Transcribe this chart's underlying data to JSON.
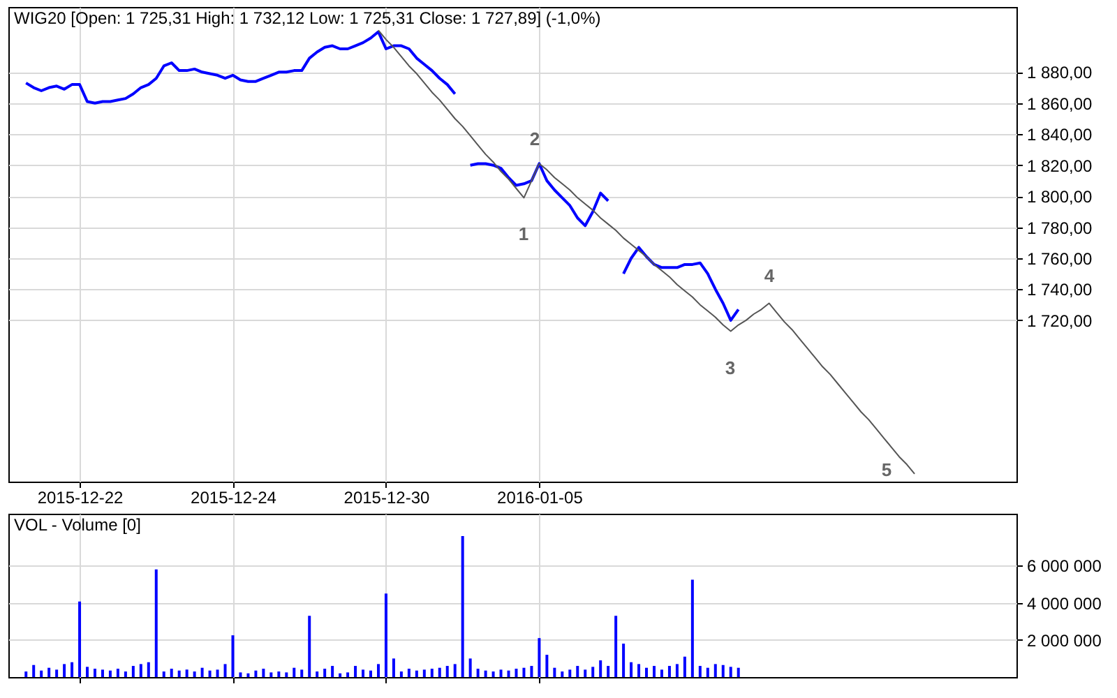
{
  "chart_data": [
    {
      "type": "line",
      "title": "WIG20 [Open: 1 725,31  High: 1 732,12  Low: 1 725,31  Close: 1 727,89] (-1,0%)",
      "categories": [
        null,
        null,
        null,
        null,
        null,
        null,
        null,
        null,
        null,
        "2015-12-22",
        null,
        null,
        null,
        null,
        null,
        null,
        null,
        null,
        null,
        null,
        null,
        null,
        null,
        null,
        null,
        null,
        null,
        null,
        null,
        "2015-12-24",
        null,
        null,
        null,
        null,
        null,
        null,
        null,
        null,
        null,
        null,
        null,
        null,
        null,
        null,
        null,
        null,
        null,
        null,
        null,
        "2015-12-30",
        null,
        null,
        null,
        null,
        null,
        null,
        null,
        null,
        null,
        null,
        null,
        null,
        null,
        null,
        null,
        null,
        null,
        null,
        null,
        "2016-01-05",
        null,
        null,
        null,
        null,
        null,
        null,
        null,
        null,
        null,
        null,
        null,
        null,
        null,
        null,
        null,
        null,
        null,
        null,
        null,
        null,
        null,
        null,
        null,
        null,
        null,
        null,
        null,
        null,
        null,
        null,
        null,
        null,
        null,
        null,
        null,
        null,
        null,
        null,
        null,
        null,
        null,
        null,
        null,
        null,
        null,
        null,
        null,
        null,
        null,
        null,
        null,
        null,
        null,
        null,
        null,
        null,
        null,
        null,
        null,
        null,
        null,
        null
      ],
      "ylim": [
        1616,
        1922
      ],
      "yticks": [
        {
          "value": 1720,
          "label": "1 720,00"
        },
        {
          "value": 1740,
          "label": "1 740,00"
        },
        {
          "value": 1760,
          "label": "1 760,00"
        },
        {
          "value": 1780,
          "label": "1 780,00"
        },
        {
          "value": 1800,
          "label": "1 800,00"
        },
        {
          "value": 1820,
          "label": "1 820,00"
        },
        {
          "value": 1840,
          "label": "1 840,00"
        },
        {
          "value": 1860,
          "label": "1 860,00"
        },
        {
          "value": 1880,
          "label": "1 880,00"
        }
      ],
      "grid": true,
      "series": [
        {
          "color": "#0000ff",
          "values": [
            null,
            null,
            1873,
            1870,
            1868,
            1870,
            1871,
            1869,
            1872,
            1872,
            1861,
            1860,
            1861,
            1861,
            1862,
            1863,
            1866,
            1870,
            1872,
            1876,
            1884,
            1886,
            1881,
            1881,
            1882,
            1880,
            1879,
            1878,
            1876,
            1878,
            1875,
            1874,
            1874,
            1876,
            1878,
            1880,
            1880,
            1881,
            1881,
            1889,
            1893,
            1896,
            1897,
            1895,
            1895,
            1897,
            1899,
            1902,
            1906,
            1895,
            1897,
            1897,
            1895,
            1889,
            1885,
            1881,
            1876,
            1872,
            1866,
            null,
            1820,
            1821,
            1821,
            1820,
            1818,
            1812,
            1807,
            1808,
            1810,
            1821,
            1810,
            1804,
            1799,
            1794,
            1786,
            1781,
            1790,
            1802,
            1797,
            null,
            1750,
            1760,
            1767,
            1761,
            1756,
            1754,
            1754,
            1754,
            1756,
            1756,
            1757,
            1750,
            1740,
            1731,
            1720,
            1727,
            null,
            null,
            null,
            null,
            null,
            null,
            null,
            null,
            null,
            null,
            null,
            null,
            null,
            null,
            null,
            null,
            null,
            null,
            null,
            null,
            null,
            null,
            null,
            null,
            null,
            null,
            null,
            null,
            null,
            null,
            null,
            null,
            null,
            null,
            null,
            null
          ]
        },
        {
          "color": "#555555",
          "values": [
            null,
            null,
            null,
            null,
            null,
            null,
            null,
            null,
            null,
            null,
            null,
            null,
            null,
            null,
            null,
            null,
            null,
            null,
            null,
            null,
            null,
            null,
            null,
            null,
            null,
            null,
            null,
            null,
            null,
            null,
            null,
            null,
            null,
            null,
            null,
            null,
            null,
            null,
            null,
            null,
            null,
            null,
            null,
            null,
            null,
            null,
            null,
            null,
            1907,
            1901,
            1896,
            1890,
            1884,
            1879,
            1873,
            1867,
            1862,
            1856,
            1850,
            1845,
            1839,
            1833,
            1827,
            1822,
            1816,
            1811,
            1805,
            1799,
            1810,
            1821,
            1817,
            1812,
            1808,
            1804,
            1799,
            1795,
            1791,
            1786,
            1782,
            1778,
            1773,
            1769,
            1765,
            1761,
            1756,
            1752,
            1748,
            1743,
            1739,
            1735,
            1730,
            1726,
            1722,
            1717,
            1713,
            1717,
            1720,
            1724,
            1727,
            1731,
            1725,
            1719,
            1714,
            1708,
            1702,
            1696,
            1690,
            1685,
            1679,
            1673,
            1667,
            1661,
            1656,
            1650,
            1644,
            1638,
            1632,
            1627,
            1621,
            null,
            null,
            null,
            null,
            null,
            null,
            null,
            null,
            null,
            null,
            null,
            null,
            null
          ]
        }
      ],
      "annotations": [
        "1",
        "2",
        "3",
        "4",
        "5"
      ]
    },
    {
      "type": "bar",
      "title": "VOL - Volume [0]",
      "categories": [
        null,
        null,
        null,
        null,
        null,
        null,
        null,
        null,
        null,
        "2015-12-22",
        null,
        null,
        null,
        null,
        null,
        null,
        null,
        null,
        null,
        null,
        null,
        null,
        null,
        null,
        null,
        null,
        null,
        null,
        null,
        "2015-12-24",
        null,
        null,
        null,
        null,
        null,
        null,
        null,
        null,
        null,
        null,
        null,
        null,
        null,
        null,
        null,
        null,
        null,
        null,
        null,
        "2015-12-30",
        null,
        null,
        null,
        null,
        null,
        null,
        null,
        null,
        null,
        null,
        null,
        null,
        null,
        null,
        null,
        null,
        null,
        null,
        null,
        "2016-01-05",
        null,
        null,
        null,
        null,
        null,
        null,
        null,
        null,
        null,
        null,
        null,
        null,
        null,
        null,
        null,
        null,
        null,
        null,
        null,
        null,
        null,
        null,
        null,
        null,
        null,
        null,
        null,
        null,
        null,
        null,
        null,
        null,
        null,
        null,
        null,
        null,
        null,
        null,
        null,
        null,
        null,
        null,
        null,
        null,
        null,
        null,
        null,
        null,
        null,
        null,
        null,
        null,
        null,
        null,
        null,
        null,
        null,
        null,
        null,
        null,
        null,
        null
      ],
      "ylim": [
        0,
        8800000
      ],
      "yticks": [
        {
          "value": 2000000,
          "label": "2 000 000"
        },
        {
          "value": 4000000,
          "label": "4 000 000"
        },
        {
          "value": 6000000,
          "label": "6 000 000"
        }
      ],
      "grid": true,
      "tick_labels": "y",
      "series": [
        {
          "color": "#0000ff",
          "values": [
            null,
            null,
            300000,
            650000,
            350000,
            500000,
            400000,
            700000,
            800000,
            4070000,
            550000,
            450000,
            400000,
            350000,
            450000,
            300000,
            600000,
            700000,
            800000,
            5800000,
            300000,
            450000,
            350000,
            400000,
            300000,
            500000,
            350000,
            400000,
            700000,
            2250000,
            250000,
            200000,
            350000,
            450000,
            250000,
            300000,
            250000,
            500000,
            400000,
            3300000,
            300000,
            450000,
            600000,
            200000,
            250000,
            600000,
            400000,
            350000,
            700000,
            4500000,
            1000000,
            300000,
            450000,
            350000,
            400000,
            450000,
            500000,
            600000,
            700000,
            7600000,
            1000000,
            450000,
            350000,
            300000,
            400000,
            350000,
            450000,
            500000,
            600000,
            2100000,
            1200000,
            500000,
            300000,
            400000,
            600000,
            400000,
            550000,
            900000,
            600000,
            3300000,
            1800000,
            800000,
            700000,
            500000,
            600000,
            400000,
            600000,
            700000,
            1100000,
            5250000,
            600000,
            500000,
            700000,
            650000,
            550000,
            500000,
            null,
            null,
            null,
            null,
            null,
            null,
            null,
            null,
            null,
            null,
            null,
            null,
            null,
            null,
            null,
            null,
            null,
            null,
            null,
            null,
            null,
            null,
            null,
            null,
            null,
            null,
            null,
            null,
            null,
            null,
            null,
            null,
            null,
            null,
            null,
            null
          ]
        }
      ]
    }
  ]
}
